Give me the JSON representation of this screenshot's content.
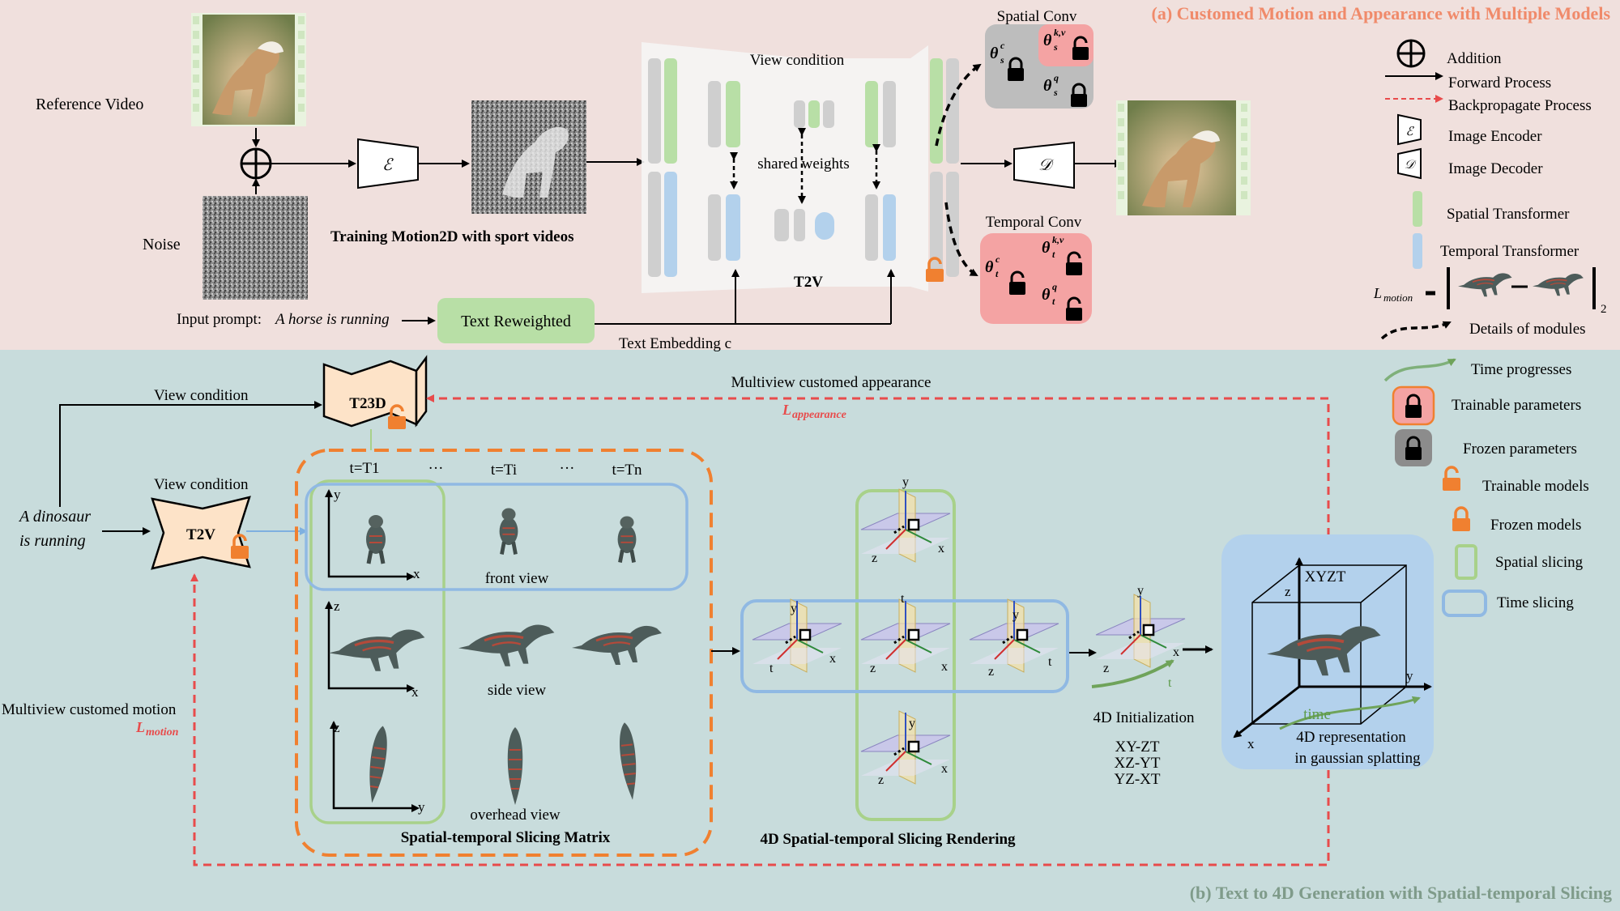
{
  "sections": {
    "a_title": "(a) Customed Motion and Appearance with Multiple Models",
    "b_title": "(b) Text to 4D Generation with Spatial-temporal Slicing"
  },
  "top": {
    "reference_video": "Reference  Video",
    "noise": "Noise",
    "encoder_symbol": "ℰ",
    "decoder_symbol": "𝒟",
    "training_caption": "Training Motion2D with sport videos",
    "input_prompt_label": "Input prompt:",
    "input_prompt_text": "A horse is running",
    "text_reweighted": "Text Reweighted",
    "text_embedding": "Text Embedding c",
    "view_condition": "View condition",
    "shared_weights": "shared weights",
    "t2v": "T2V",
    "spatial_conv": "Spatial Conv",
    "temporal_conv": "Temporal Conv",
    "theta_s": [
      "θ",
      "θ",
      "θ"
    ],
    "theta_s_sup": [
      "c",
      "k,v",
      "q"
    ],
    "theta_s_sub": "s",
    "theta_t_sub": "t"
  },
  "legend": {
    "items": [
      {
        "label": "Addition",
        "icon": "circle-plus-icon"
      },
      {
        "label": "Forward Process",
        "icon": "black-arrow-icon"
      },
      {
        "label": "Backpropagate Process",
        "icon": "red-dashed-arrow-icon"
      },
      {
        "label": "Image Encoder",
        "icon": "encoder-icon"
      },
      {
        "label": "Image Decoder",
        "icon": "decoder-icon"
      },
      {
        "label": "Spatial Transformer",
        "icon": "green-bar-icon"
      },
      {
        "label": "Temporal Transformer",
        "icon": "blue-bar-icon"
      },
      {
        "label": "Details of modules",
        "icon": "black-dashed-curve-icon"
      },
      {
        "label": "Time progresses",
        "icon": "green-curve-icon"
      },
      {
        "label": "Trainable parameters",
        "icon": "pink-lock-icon"
      },
      {
        "label": "Frozen parameters",
        "icon": "grey-lock-icon"
      },
      {
        "label": "Trainable models",
        "icon": "orange-open-lock-icon"
      },
      {
        "label": "Frozen models",
        "icon": "orange-lock-icon"
      },
      {
        "label": "Spatial slicing",
        "icon": "green-box-icon"
      },
      {
        "label": "Time slicing",
        "icon": "blue-box-icon"
      }
    ],
    "l_motion": "L",
    "l_motion_sub": "motion",
    "norm_sub": "2"
  },
  "bottom": {
    "view_condition_1": "View condition",
    "view_condition_2": "View condition",
    "t23d": "T23D",
    "t2v": "T2V",
    "prompt_line1": "A dinosaur",
    "prompt_line2": "is running",
    "multiview_appearance": "Multiview customed appearance",
    "l_appearance": "L",
    "l_appearance_sub": "appearance",
    "multiview_motion": "Multiview customed motion",
    "l_motion": "L",
    "l_motion_sub": "motion",
    "time_labels": [
      "t=T1",
      "···",
      "t=Ti",
      "···",
      "t=Tn"
    ],
    "front_view": "front view",
    "side_view": "side view",
    "overhead_view": "overhead view",
    "matrix_caption": "Spatial-temporal Slicing Matrix",
    "rendering_caption": "4D Spatial-temporal Slicing Rendering",
    "init_caption": "4D Initialization",
    "planes": [
      "XY-ZT",
      "XZ-YT",
      "YZ-XT"
    ],
    "xyzt": "XYZT",
    "time_word": "time",
    "repr_line1": "4D representation",
    "repr_line2": "in gaussian splatting",
    "axes": {
      "x": "x",
      "y": "y",
      "z": "z",
      "t": "t"
    }
  },
  "colors": {
    "top_bg": "#f0e0dd",
    "bottom_bg": "#c8dcdc",
    "a_title": "#f08a6a",
    "b_title": "#7f9b8a",
    "spatial": "#b8dfa6",
    "temporal": "#b3d1ec",
    "trainable": "#f4a3a3",
    "frozen": "#bdbdbd",
    "orange": "#f08030",
    "red_dash": "#e84b4b",
    "green_slice": "#a8d18a",
    "blue_slice": "#90b9e3"
  }
}
